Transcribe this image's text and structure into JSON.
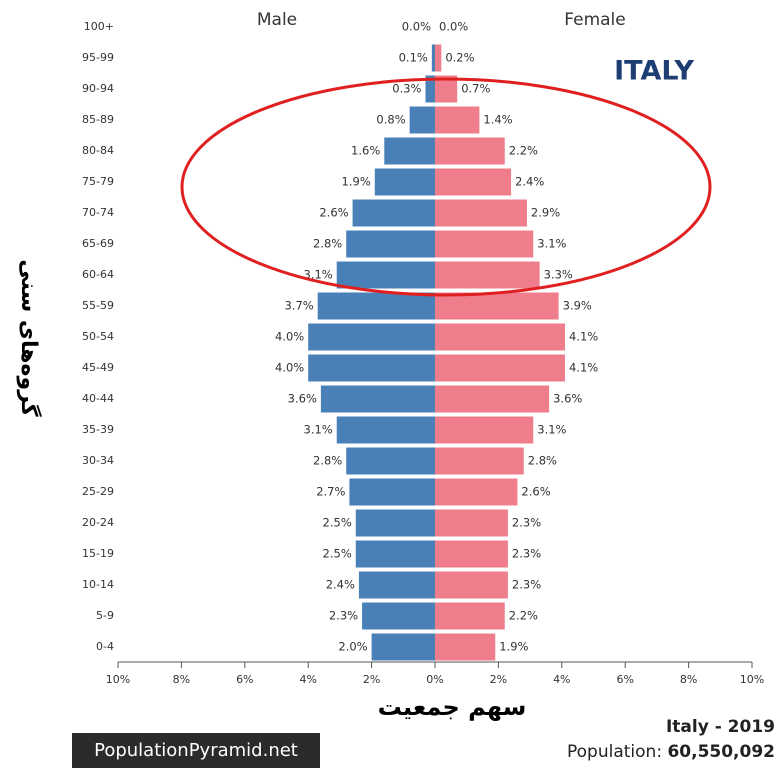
{
  "chart_data": {
    "type": "pyramid",
    "categories": [
      "100+",
      "95-99",
      "90-94",
      "85-89",
      "80-84",
      "75-79",
      "70-74",
      "65-69",
      "60-64",
      "55-59",
      "50-54",
      "45-49",
      "40-44",
      "35-39",
      "30-34",
      "25-29",
      "20-24",
      "15-19",
      "10-14",
      "5-9",
      "0-4"
    ],
    "series": [
      {
        "name": "Male",
        "color": "#4a80b8",
        "values": [
          0.0,
          0.1,
          0.3,
          0.8,
          1.6,
          1.9,
          2.6,
          2.8,
          3.1,
          3.7,
          4.0,
          4.0,
          3.6,
          3.1,
          2.8,
          2.7,
          2.5,
          2.5,
          2.4,
          2.3,
          2.0
        ],
        "value_labels": [
          "0.0%",
          "0.1%",
          "0.3%",
          "0.8%",
          "1.6%",
          "1.9%",
          "2.6%",
          "2.8%",
          "3.1%",
          "3.7%",
          "4.0%",
          "4.0%",
          "3.6%",
          "3.1%",
          "2.8%",
          "2.7%",
          "2.5%",
          "2.5%",
          "2.4%",
          "2.3%",
          "2.0%"
        ]
      },
      {
        "name": "Female",
        "color": "#ef7d8b",
        "values": [
          0.0,
          0.2,
          0.7,
          1.4,
          2.2,
          2.4,
          2.9,
          3.1,
          3.3,
          3.9,
          4.1,
          4.1,
          3.6,
          3.1,
          2.8,
          2.6,
          2.3,
          2.3,
          2.3,
          2.2,
          1.9
        ],
        "value_labels": [
          "0.0%",
          "0.2%",
          "0.7%",
          "1.4%",
          "2.2%",
          "2.4%",
          "2.9%",
          "3.1%",
          "3.3%",
          "3.9%",
          "4.1%",
          "4.1%",
          "3.6%",
          "3.1%",
          "2.8%",
          "2.6%",
          "2.3%",
          "2.3%",
          "2.3%",
          "2.2%",
          "1.9%"
        ]
      }
    ],
    "xlim": [
      -10,
      10
    ],
    "xticks": [
      {
        "value": -10,
        "label": "10%"
      },
      {
        "value": -8,
        "label": "8%"
      },
      {
        "value": -6,
        "label": "6%"
      },
      {
        "value": -4,
        "label": "4%"
      },
      {
        "value": -2,
        "label": "2%"
      },
      {
        "value": 0,
        "label": "0%"
      },
      {
        "value": 2,
        "label": "2%"
      },
      {
        "value": 4,
        "label": "4%"
      },
      {
        "value": 6,
        "label": "6%"
      },
      {
        "value": 8,
        "label": "8%"
      },
      {
        "value": 10,
        "label": "10%"
      }
    ],
    "annotation": "ITALY",
    "ylabel": "گروه‌های سنی",
    "xlabel": "سهم جمعیت",
    "footer_title": "Italy - 2019",
    "population_label": "Population:",
    "population": "60,550,092",
    "watermark": "PopulationPyramid.net"
  }
}
